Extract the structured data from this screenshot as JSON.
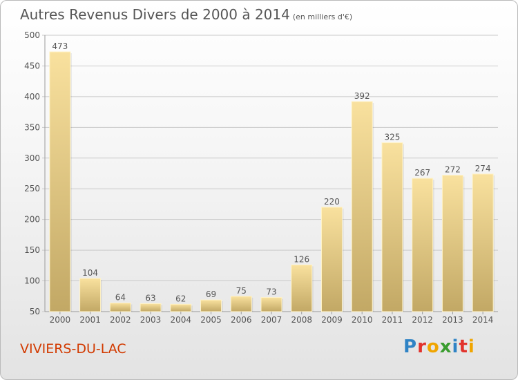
{
  "title": "Autres Revenus Divers de 2000 à 2014",
  "unit": "(en milliers d'€)",
  "commune": "VIVIERS-DU-LAC",
  "logo": {
    "text": "Proxiti",
    "letters": [
      {
        "char": "P",
        "color": "#2f83c5"
      },
      {
        "char": "r",
        "color": "#e2322c"
      },
      {
        "char": "o",
        "color": "#f0a500"
      },
      {
        "char": "x",
        "color": "#3a9d2f"
      },
      {
        "char": "i",
        "color": "#2f83c5"
      },
      {
        "char": "t",
        "color": "#e2322c"
      },
      {
        "char": "i",
        "color": "#f0a500"
      }
    ]
  },
  "colors": {
    "bar_top": "#f9e19e",
    "bar_bottom": "#c2a865",
    "grid": "#c9c9c9",
    "text": "#555555",
    "accent": "#d23a00"
  },
  "chart_data": {
    "type": "bar",
    "title": "Autres Revenus Divers de 2000 à 2014",
    "categories": [
      "2000",
      "2001",
      "2002",
      "2003",
      "2004",
      "2005",
      "2006",
      "2007",
      "2008",
      "2009",
      "2010",
      "2011",
      "2012",
      "2013",
      "2014"
    ],
    "values": [
      473,
      104,
      64,
      63,
      62,
      69,
      75,
      73,
      126,
      220,
      392,
      325,
      267,
      272,
      274
    ],
    "ylim": [
      50,
      500
    ],
    "yticks": [
      50,
      100,
      150,
      200,
      250,
      300,
      350,
      400,
      450,
      500
    ],
    "grid": true,
    "data_labels": true
  }
}
